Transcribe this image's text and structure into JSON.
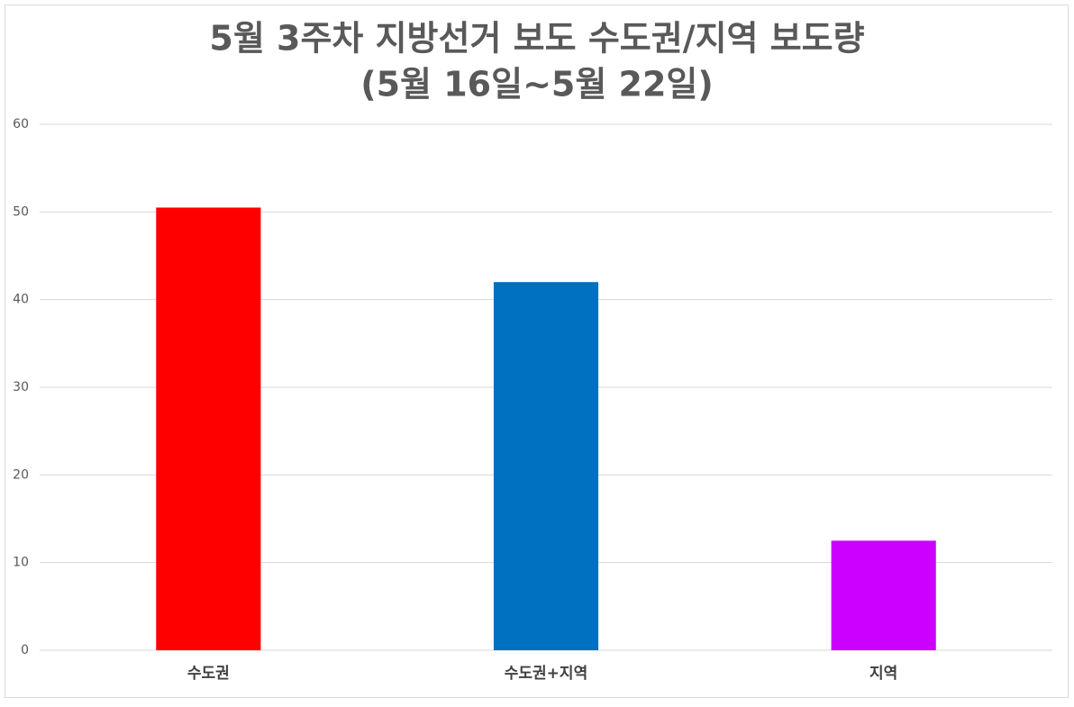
{
  "chart_data": {
    "type": "bar",
    "title": "5월 3주차 지방선거 보도 수도권/지역 보도량",
    "subtitle": "(5월 16일~5월 22일)",
    "categories": [
      "수도권",
      "수도권+지역",
      "지역"
    ],
    "values": [
      50.5,
      42,
      12.5
    ],
    "colors": [
      "#ff0000",
      "#0070c0",
      "#cc00ff"
    ],
    "ylim": [
      0,
      60
    ],
    "yticks": [
      0,
      10,
      20,
      30,
      40,
      50,
      60
    ],
    "grid": true
  }
}
